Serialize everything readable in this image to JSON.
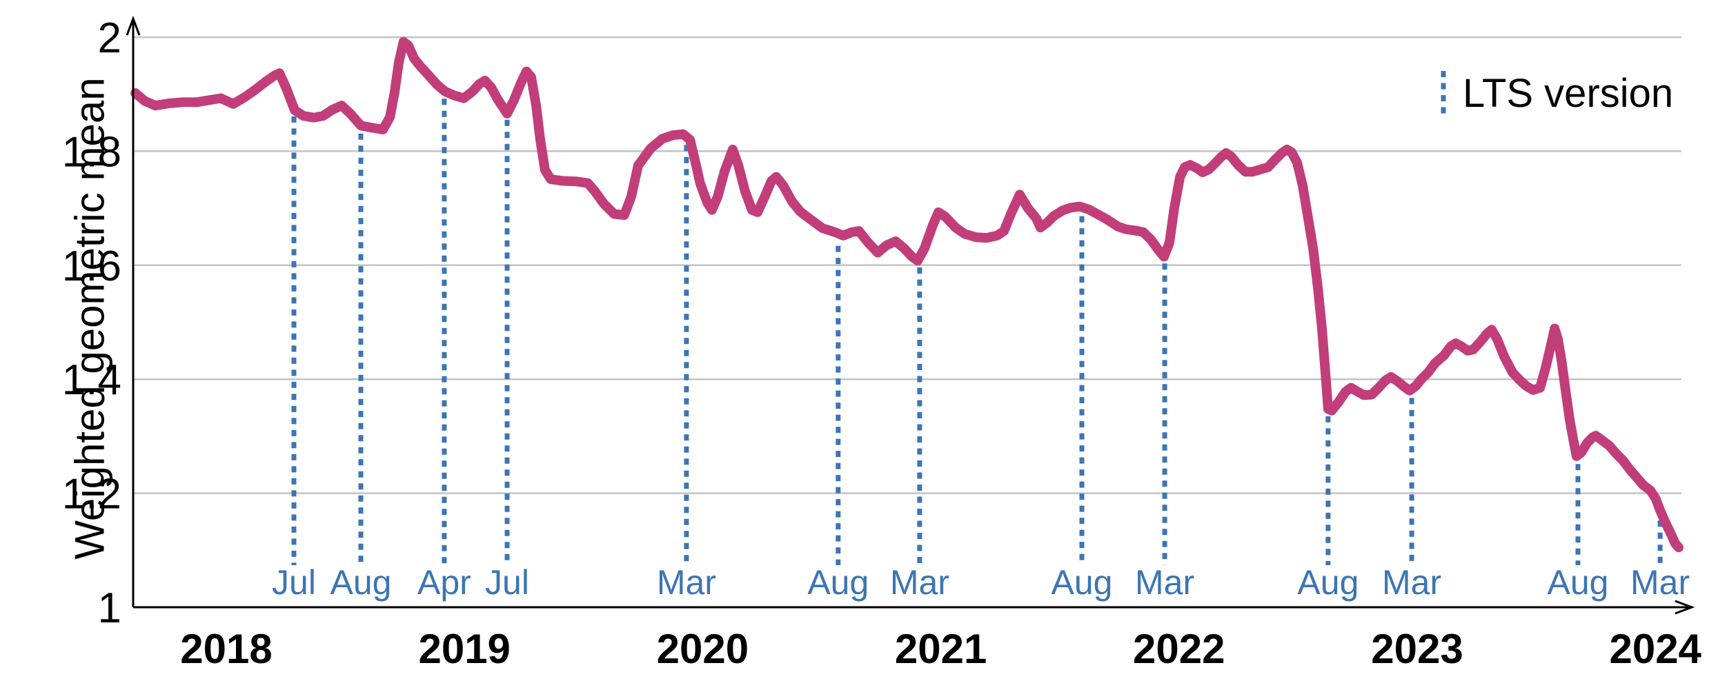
{
  "figure": {
    "ylabel": "Weighted geometric mean",
    "legend_label": "LTS version",
    "colors": {
      "line": "#c23e7a",
      "lts": "#3c75b3",
      "grid": "#c3c3c3",
      "axis": "#000000",
      "text": "#000000",
      "background": "#ffffff"
    }
  },
  "chart_data": {
    "type": "line",
    "title": "",
    "xlabel": "",
    "ylabel": "Weighted geometric mean",
    "xlim": [
      2017.55,
      2024.16
    ],
    "ylim": [
      1,
      2
    ],
    "grid": true,
    "legend_position": "top-right",
    "legend_entries": [
      "LTS version"
    ],
    "yticks": [
      {
        "value": 1,
        "label": "1"
      },
      {
        "value": 1.2,
        "label": "1.2"
      },
      {
        "value": 1.4,
        "label": "1.4"
      },
      {
        "value": 1.6,
        "label": "1.6"
      },
      {
        "value": 1.8,
        "label": "1.8"
      },
      {
        "value": 2,
        "label": "2"
      }
    ],
    "xticks": [
      {
        "value": 2018,
        "label": "2018"
      },
      {
        "value": 2019,
        "label": "2019"
      },
      {
        "value": 2020,
        "label": "2020"
      },
      {
        "value": 2021,
        "label": "2021"
      },
      {
        "value": 2022,
        "label": "2022"
      },
      {
        "value": 2023,
        "label": "2023"
      },
      {
        "value": 2024,
        "label": "2024"
      }
    ],
    "lts_markers": [
      {
        "label": "Jul",
        "year": 2018.284,
        "value": 1.872
      },
      {
        "label": "Aug",
        "year": 2018.565,
        "value": 1.842
      },
      {
        "label": "Apr",
        "year": 2018.915,
        "value": 1.903
      },
      {
        "label": "Jul",
        "year": 2019.179,
        "value": 1.866
      },
      {
        "label": "Mar",
        "year": 2019.932,
        "value": 1.822
      },
      {
        "label": "Aug",
        "year": 2020.569,
        "value": 1.645
      },
      {
        "label": "Mar",
        "year": 2020.911,
        "value": 1.607
      },
      {
        "label": "Aug",
        "year": 2021.592,
        "value": 1.697
      },
      {
        "label": "Mar",
        "year": 2021.94,
        "value": 1.614
      },
      {
        "label": "Aug",
        "year": 2022.626,
        "value": 1.346
      },
      {
        "label": "Mar",
        "year": 2022.977,
        "value": 1.378
      },
      {
        "label": "Aug",
        "year": 2023.675,
        "value": 1.262
      },
      {
        "label": "Mar",
        "year": 2024.02,
        "value": 1.163
      }
    ],
    "series": [
      {
        "name": "Weighted geometric mean",
        "color": "#c23e7a",
        "points": [
          [
            2017.618,
            1.902
          ],
          [
            2017.658,
            1.888
          ],
          [
            2017.702,
            1.88
          ],
          [
            2017.76,
            1.884
          ],
          [
            2017.817,
            1.886
          ],
          [
            2017.875,
            1.886
          ],
          [
            2017.933,
            1.89
          ],
          [
            2017.977,
            1.893
          ],
          [
            2018.029,
            1.883
          ],
          [
            2018.078,
            1.895
          ],
          [
            2018.122,
            1.908
          ],
          [
            2018.165,
            1.922
          ],
          [
            2018.203,
            1.933
          ],
          [
            2018.223,
            1.937
          ],
          [
            2018.252,
            1.91
          ],
          [
            2018.287,
            1.872
          ],
          [
            2018.324,
            1.862
          ],
          [
            2018.368,
            1.859
          ],
          [
            2018.406,
            1.862
          ],
          [
            2018.446,
            1.873
          ],
          [
            2018.484,
            1.88
          ],
          [
            2018.521,
            1.866
          ],
          [
            2018.565,
            1.845
          ],
          [
            2018.614,
            1.841
          ],
          [
            2018.658,
            1.838
          ],
          [
            2018.687,
            1.86
          ],
          [
            2018.707,
            1.905
          ],
          [
            2018.724,
            1.955
          ],
          [
            2018.744,
            1.992
          ],
          [
            2018.765,
            1.985
          ],
          [
            2018.788,
            1.963
          ],
          [
            2018.817,
            1.948
          ],
          [
            2018.852,
            1.932
          ],
          [
            2018.884,
            1.917
          ],
          [
            2018.918,
            1.905
          ],
          [
            2018.956,
            1.898
          ],
          [
            2018.997,
            1.893
          ],
          [
            2019.034,
            1.905
          ],
          [
            2019.063,
            1.918
          ],
          [
            2019.086,
            1.924
          ],
          [
            2019.112,
            1.912
          ],
          [
            2019.141,
            1.89
          ],
          [
            2019.179,
            1.866
          ],
          [
            2019.208,
            1.89
          ],
          [
            2019.237,
            1.92
          ],
          [
            2019.26,
            1.94
          ],
          [
            2019.28,
            1.93
          ],
          [
            2019.301,
            1.88
          ],
          [
            2019.318,
            1.82
          ],
          [
            2019.338,
            1.767
          ],
          [
            2019.362,
            1.751
          ],
          [
            2019.411,
            1.748
          ],
          [
            2019.469,
            1.747
          ],
          [
            2019.518,
            1.744
          ],
          [
            2019.547,
            1.73
          ],
          [
            2019.585,
            1.708
          ],
          [
            2019.628,
            1.69
          ],
          [
            2019.671,
            1.688
          ],
          [
            2019.7,
            1.72
          ],
          [
            2019.729,
            1.775
          ],
          [
            2019.782,
            1.805
          ],
          [
            2019.831,
            1.822
          ],
          [
            2019.874,
            1.828
          ],
          [
            2019.918,
            1.83
          ],
          [
            2019.947,
            1.82
          ],
          [
            2019.97,
            1.78
          ],
          [
            2019.99,
            1.743
          ],
          [
            2020.019,
            1.71
          ],
          [
            2020.039,
            1.697
          ],
          [
            2020.063,
            1.72
          ],
          [
            2020.092,
            1.765
          ],
          [
            2020.126,
            1.803
          ],
          [
            2020.15,
            1.775
          ],
          [
            2020.178,
            1.73
          ],
          [
            2020.207,
            1.697
          ],
          [
            2020.231,
            1.693
          ],
          [
            2020.26,
            1.72
          ],
          [
            2020.289,
            1.748
          ],
          [
            2020.309,
            1.755
          ],
          [
            2020.338,
            1.74
          ],
          [
            2020.375,
            1.712
          ],
          [
            2020.41,
            1.694
          ],
          [
            2020.454,
            1.68
          ],
          [
            2020.503,
            1.665
          ],
          [
            2020.555,
            1.658
          ],
          [
            2020.59,
            1.652
          ],
          [
            2020.627,
            1.658
          ],
          [
            2020.656,
            1.66
          ],
          [
            2020.694,
            1.64
          ],
          [
            2020.735,
            1.622
          ],
          [
            2020.772,
            1.635
          ],
          [
            2020.81,
            1.642
          ],
          [
            2020.845,
            1.63
          ],
          [
            2020.879,
            1.615
          ],
          [
            2020.903,
            1.608
          ],
          [
            2020.932,
            1.63
          ],
          [
            2020.966,
            1.67
          ],
          [
            2020.99,
            1.693
          ],
          [
            2021.019,
            1.685
          ],
          [
            2021.062,
            1.666
          ],
          [
            2021.1,
            1.655
          ],
          [
            2021.149,
            1.649
          ],
          [
            2021.192,
            1.648
          ],
          [
            2021.236,
            1.652
          ],
          [
            2021.265,
            1.66
          ],
          [
            2021.294,
            1.69
          ],
          [
            2021.331,
            1.724
          ],
          [
            2021.366,
            1.7
          ],
          [
            2021.401,
            1.682
          ],
          [
            2021.418,
            1.666
          ],
          [
            2021.447,
            1.675
          ],
          [
            2021.476,
            1.687
          ],
          [
            2021.511,
            1.696
          ],
          [
            2021.546,
            1.701
          ],
          [
            2021.583,
            1.703
          ],
          [
            2021.621,
            1.698
          ],
          [
            2021.656,
            1.69
          ],
          [
            2021.699,
            1.68
          ],
          [
            2021.743,
            1.668
          ],
          [
            2021.778,
            1.663
          ],
          [
            2021.815,
            1.661
          ],
          [
            2021.85,
            1.658
          ],
          [
            2021.882,
            1.645
          ],
          [
            2021.911,
            1.628
          ],
          [
            2021.937,
            1.615
          ],
          [
            2021.96,
            1.64
          ],
          [
            2021.98,
            1.7
          ],
          [
            2022.004,
            1.755
          ],
          [
            2022.024,
            1.772
          ],
          [
            2022.047,
            1.776
          ],
          [
            2022.076,
            1.77
          ],
          [
            2022.099,
            1.763
          ],
          [
            2022.125,
            1.768
          ],
          [
            2022.154,
            1.78
          ],
          [
            2022.177,
            1.79
          ],
          [
            2022.198,
            1.797
          ],
          [
            2022.221,
            1.79
          ],
          [
            2022.25,
            1.775
          ],
          [
            2022.279,
            1.764
          ],
          [
            2022.308,
            1.764
          ],
          [
            2022.342,
            1.768
          ],
          [
            2022.374,
            1.772
          ],
          [
            2022.403,
            1.785
          ],
          [
            2022.432,
            1.797
          ],
          [
            2022.453,
            1.803
          ],
          [
            2022.473,
            1.798
          ],
          [
            2022.496,
            1.78
          ],
          [
            2022.519,
            1.74
          ],
          [
            2022.539,
            1.69
          ],
          [
            2022.563,
            1.63
          ],
          [
            2022.583,
            1.56
          ],
          [
            2022.6,
            1.49
          ],
          [
            2022.615,
            1.41
          ],
          [
            2022.626,
            1.348
          ],
          [
            2022.641,
            1.345
          ],
          [
            2022.67,
            1.36
          ],
          [
            2022.699,
            1.378
          ],
          [
            2022.722,
            1.385
          ],
          [
            2022.751,
            1.378
          ],
          [
            2022.777,
            1.372
          ],
          [
            2022.809,
            1.373
          ],
          [
            2022.838,
            1.385
          ],
          [
            2022.867,
            1.398
          ],
          [
            2022.89,
            1.404
          ],
          [
            2022.919,
            1.396
          ],
          [
            2022.945,
            1.387
          ],
          [
            2022.968,
            1.38
          ],
          [
            2022.994,
            1.388
          ],
          [
            2023.017,
            1.4
          ],
          [
            2023.046,
            1.412
          ],
          [
            2023.075,
            1.428
          ],
          [
            2023.113,
            1.442
          ],
          [
            2023.142,
            1.458
          ],
          [
            2023.162,
            1.463
          ],
          [
            2023.185,
            1.458
          ],
          [
            2023.212,
            1.45
          ],
          [
            2023.235,
            1.452
          ],
          [
            2023.264,
            1.465
          ],
          [
            2023.293,
            1.48
          ],
          [
            2023.313,
            1.487
          ],
          [
            2023.336,
            1.47
          ],
          [
            2023.365,
            1.44
          ],
          [
            2023.4,
            1.412
          ],
          [
            2023.432,
            1.398
          ],
          [
            2023.458,
            1.388
          ],
          [
            2023.487,
            1.381
          ],
          [
            2023.516,
            1.385
          ],
          [
            2023.539,
            1.42
          ],
          [
            2023.559,
            1.455
          ],
          [
            2023.577,
            1.489
          ],
          [
            2023.591,
            1.47
          ],
          [
            2023.606,
            1.433
          ],
          [
            2023.62,
            1.39
          ],
          [
            2023.64,
            1.33
          ],
          [
            2023.655,
            1.295
          ],
          [
            2023.669,
            1.265
          ],
          [
            2023.69,
            1.272
          ],
          [
            2023.713,
            1.288
          ],
          [
            2023.736,
            1.298
          ],
          [
            2023.75,
            1.301
          ],
          [
            2023.776,
            1.293
          ],
          [
            2023.808,
            1.283
          ],
          [
            2023.834,
            1.27
          ],
          [
            2023.863,
            1.258
          ],
          [
            2023.892,
            1.242
          ],
          [
            2023.921,
            1.228
          ],
          [
            2023.95,
            1.214
          ],
          [
            2023.979,
            1.205
          ],
          [
            2024.002,
            1.19
          ],
          [
            2024.02,
            1.17
          ],
          [
            2024.043,
            1.148
          ],
          [
            2024.066,
            1.128
          ],
          [
            2024.083,
            1.112
          ],
          [
            2024.098,
            1.105
          ]
        ]
      }
    ]
  }
}
